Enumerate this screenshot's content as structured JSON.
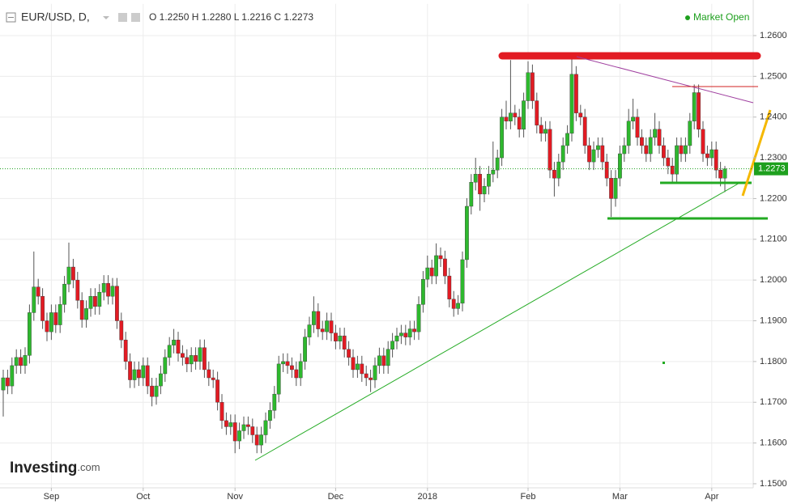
{
  "header": {
    "symbol": "EUR/USD, D,",
    "quote": "O 1.2250 H 1.2280 L 1.2216 C 1.2273",
    "status": "Market Open",
    "logo": "Investing",
    "logo_suffix": ".com"
  },
  "chart_data": {
    "type": "candlestick",
    "up_color": "#2eb82e",
    "down_color": "#e21b23",
    "last_color": "#1ea01e",
    "grid": true,
    "ylim": [
      1.149,
      1.2678
    ],
    "yticks": [
      {
        "value": 1.15,
        "label": "1.1500"
      },
      {
        "value": 1.16,
        "label": "1.1600"
      },
      {
        "value": 1.17,
        "label": "1.1700"
      },
      {
        "value": 1.18,
        "label": "1.1800"
      },
      {
        "value": 1.19,
        "label": "1.1900"
      },
      {
        "value": 1.2,
        "label": "1.2000"
      },
      {
        "value": 1.21,
        "label": "1.2100"
      },
      {
        "value": 1.22,
        "label": "1.2200"
      },
      {
        "value": 1.23,
        "label": "1.2300"
      },
      {
        "value": 1.24,
        "label": "1.2400"
      },
      {
        "value": 1.25,
        "label": "1.2500"
      },
      {
        "value": 1.26,
        "label": "1.2600"
      }
    ],
    "categories": [
      null,
      null,
      null,
      null,
      null,
      null,
      null,
      null,
      null,
      null,
      null,
      "Sep",
      null,
      null,
      null,
      null,
      null,
      null,
      null,
      null,
      null,
      null,
      null,
      null,
      null,
      null,
      null,
      null,
      null,
      null,
      null,
      null,
      "Oct",
      null,
      null,
      null,
      null,
      null,
      null,
      null,
      null,
      null,
      null,
      null,
      null,
      null,
      null,
      null,
      null,
      null,
      null,
      null,
      null,
      "Nov",
      null,
      null,
      null,
      null,
      null,
      null,
      null,
      null,
      null,
      null,
      null,
      null,
      null,
      null,
      null,
      null,
      null,
      null,
      null,
      null,
      null,
      null,
      "Dec",
      null,
      null,
      null,
      null,
      null,
      null,
      null,
      null,
      null,
      null,
      null,
      null,
      null,
      null,
      null,
      null,
      null,
      null,
      null,
      null,
      "2018",
      null,
      null,
      null,
      null,
      null,
      null,
      null,
      null,
      null,
      null,
      null,
      null,
      null,
      null,
      null,
      null,
      null,
      null,
      null,
      null,
      null,
      null,
      "Feb",
      null,
      null,
      null,
      null,
      null,
      null,
      null,
      null,
      null,
      null,
      null,
      null,
      null,
      null,
      null,
      null,
      null,
      null,
      null,
      null,
      "Mar",
      null,
      null,
      null,
      null,
      null,
      null,
      null,
      null,
      null,
      null,
      null,
      null,
      null,
      null,
      null,
      null,
      null,
      null,
      null,
      null,
      "Apr",
      null,
      null,
      null
    ],
    "open": [
      1.173,
      1.176,
      1.174,
      1.179,
      1.181,
      1.179,
      1.1815,
      1.192,
      1.1983,
      1.196,
      1.19,
      1.1873,
      1.192,
      1.189,
      1.194,
      1.199,
      1.2032,
      1.2,
      1.195,
      1.1903,
      1.193,
      1.196,
      1.1935,
      1.197,
      1.1992,
      1.196,
      1.1985,
      1.19,
      1.1853,
      1.18,
      1.1755,
      1.178,
      1.176,
      1.179,
      1.174,
      1.1714,
      1.174,
      1.177,
      1.181,
      1.184,
      1.1853,
      1.182,
      1.181,
      1.1794,
      1.1815,
      1.18,
      1.1834,
      1.178,
      1.176,
      1.1755,
      1.17,
      1.1655,
      1.164,
      1.165,
      1.1605,
      1.163,
      1.1645,
      1.164,
      1.162,
      1.1595,
      1.162,
      1.1655,
      1.168,
      1.172,
      1.1794,
      1.18,
      1.179,
      1.178,
      1.176,
      1.18,
      1.186,
      1.189,
      1.1923,
      1.188,
      1.1873,
      1.19,
      1.187,
      1.185,
      1.1863,
      1.183,
      1.181,
      1.178,
      1.1794,
      1.177,
      1.176,
      1.1755,
      1.179,
      1.1814,
      1.179,
      1.183,
      1.185,
      1.1863,
      1.187,
      1.186,
      1.188,
      1.1873,
      1.194,
      1.2002,
      1.203,
      1.201,
      1.206,
      1.2052,
      1.201,
      1.1953,
      1.193,
      1.1943,
      1.205,
      1.2181,
      1.224,
      1.226,
      1.2211,
      1.223,
      1.226,
      1.227,
      1.23,
      1.24,
      1.239,
      1.241,
      1.24,
      1.237,
      1.244,
      1.2509,
      1.244,
      1.238,
      1.236,
      1.237,
      1.227,
      1.225,
      1.229,
      1.233,
      1.236,
      1.2505,
      1.241,
      1.24,
      1.233,
      1.229,
      1.232,
      1.233,
      1.229,
      1.225,
      1.22,
      1.225,
      1.231,
      1.233,
      1.239,
      1.24,
      1.235,
      1.233,
      1.231,
      1.235,
      1.237,
      1.233,
      1.23,
      1.228,
      1.226,
      1.233,
      1.231,
      1.233,
      1.239,
      1.246,
      1.237,
      1.231,
      1.23,
      1.232,
      1.227,
      1.225
    ],
    "high": [
      1.178,
      1.178,
      1.181,
      1.183,
      1.183,
      1.1835,
      1.194,
      1.207,
      1.2003,
      1.198,
      1.192,
      1.194,
      1.194,
      1.196,
      1.201,
      1.2092,
      1.2052,
      1.202,
      1.197,
      1.195,
      1.198,
      1.198,
      1.199,
      1.2012,
      1.2012,
      1.2005,
      1.2005,
      1.192,
      1.1873,
      1.182,
      1.18,
      1.18,
      1.181,
      1.181,
      1.176,
      1.176,
      1.179,
      1.183,
      1.186,
      1.188,
      1.1873,
      1.184,
      1.183,
      1.1835,
      1.1835,
      1.1854,
      1.1854,
      1.18,
      1.178,
      1.1775,
      1.172,
      1.1675,
      1.167,
      1.167,
      1.165,
      1.1665,
      1.1665,
      1.166,
      1.164,
      1.164,
      1.1675,
      1.17,
      1.174,
      1.1814,
      1.182,
      1.182,
      1.181,
      1.18,
      1.182,
      1.188,
      1.191,
      1.196,
      1.1943,
      1.19,
      1.192,
      1.192,
      1.189,
      1.1883,
      1.1883,
      1.185,
      1.183,
      1.1814,
      1.1814,
      1.179,
      1.178,
      1.181,
      1.1834,
      1.1834,
      1.185,
      1.187,
      1.1883,
      1.189,
      1.189,
      1.19,
      1.19,
      1.196,
      1.2022,
      1.206,
      1.205,
      1.209,
      1.208,
      1.2072,
      1.203,
      1.1973,
      1.1963,
      1.207,
      1.2201,
      1.226,
      1.23,
      1.228,
      1.225,
      1.228,
      1.234,
      1.232,
      1.242,
      1.244,
      1.254,
      1.243,
      1.242,
      1.246,
      1.2537,
      1.2529,
      1.246,
      1.24,
      1.239,
      1.239,
      1.229,
      1.231,
      1.235,
      1.238,
      1.2555,
      1.2525,
      1.243,
      1.242,
      1.235,
      1.234,
      1.235,
      1.235,
      1.231,
      1.227,
      1.227,
      1.233,
      1.235,
      1.242,
      1.2445,
      1.242,
      1.237,
      1.235,
      1.237,
      1.241,
      1.239,
      1.235,
      1.232,
      1.23,
      1.235,
      1.235,
      1.235,
      1.241,
      1.248,
      1.248,
      1.239,
      1.233,
      1.234,
      1.234,
      1.229,
      1.228
    ],
    "low": [
      1.1665,
      1.172,
      1.172,
      1.177,
      1.177,
      1.177,
      1.1795,
      1.19,
      1.194,
      1.188,
      1.185,
      1.1853,
      1.187,
      1.187,
      1.192,
      1.197,
      1.198,
      1.193,
      1.1883,
      1.1883,
      1.191,
      1.1915,
      1.1915,
      1.195,
      1.194,
      1.194,
      1.188,
      1.1833,
      1.178,
      1.1735,
      1.1735,
      1.174,
      1.174,
      1.172,
      1.169,
      1.1694,
      1.172,
      1.175,
      1.179,
      1.182,
      1.18,
      1.179,
      1.1774,
      1.1774,
      1.178,
      1.178,
      1.176,
      1.174,
      1.1735,
      1.168,
      1.1635,
      1.162,
      1.162,
      1.1575,
      1.1585,
      1.161,
      1.162,
      1.16,
      1.1575,
      1.1575,
      1.16,
      1.1635,
      1.166,
      1.17,
      1.1774,
      1.177,
      1.176,
      1.174,
      1.174,
      1.178,
      1.184,
      1.187,
      1.186,
      1.1853,
      1.1853,
      1.185,
      1.183,
      1.183,
      1.181,
      1.179,
      1.176,
      1.176,
      1.175,
      1.174,
      1.1725,
      1.1735,
      1.177,
      1.177,
      1.177,
      1.181,
      1.183,
      1.1843,
      1.184,
      1.184,
      1.1853,
      1.1853,
      1.192,
      1.1982,
      1.199,
      1.199,
      1.2032,
      1.199,
      1.1933,
      1.191,
      1.1915,
      1.1923,
      1.203,
      1.2161,
      1.222,
      1.217,
      1.2191,
      1.221,
      1.224,
      1.225,
      1.228,
      1.237,
      1.237,
      1.238,
      1.235,
      1.235,
      1.242,
      1.242,
      1.236,
      1.234,
      1.234,
      1.225,
      1.2205,
      1.223,
      1.227,
      1.231,
      1.234,
      1.239,
      1.238,
      1.231,
      1.227,
      1.227,
      1.23,
      1.227,
      1.223,
      1.2155,
      1.218,
      1.223,
      1.229,
      1.231,
      1.237,
      1.233,
      1.231,
      1.229,
      1.229,
      1.233,
      1.231,
      1.228,
      1.226,
      1.224,
      1.224,
      1.229,
      1.229,
      1.231,
      1.237,
      1.235,
      1.229,
      1.228,
      1.228,
      1.225,
      1.223,
      1.2216
    ],
    "close": [
      1.176,
      1.174,
      1.179,
      1.181,
      1.179,
      1.1815,
      1.192,
      1.1983,
      1.196,
      1.19,
      1.1873,
      1.192,
      1.189,
      1.194,
      1.199,
      1.2032,
      1.2,
      1.195,
      1.1903,
      1.193,
      1.196,
      1.1935,
      1.197,
      1.1992,
      1.196,
      1.1985,
      1.19,
      1.1853,
      1.18,
      1.1755,
      1.178,
      1.176,
      1.179,
      1.174,
      1.1714,
      1.174,
      1.177,
      1.181,
      1.184,
      1.1853,
      1.182,
      1.181,
      1.1794,
      1.1815,
      1.18,
      1.1834,
      1.178,
      1.176,
      1.1755,
      1.17,
      1.1655,
      1.164,
      1.165,
      1.1605,
      1.163,
      1.1645,
      1.164,
      1.162,
      1.1595,
      1.162,
      1.1655,
      1.168,
      1.172,
      1.1794,
      1.18,
      1.179,
      1.178,
      1.176,
      1.18,
      1.186,
      1.189,
      1.1923,
      1.188,
      1.1873,
      1.19,
      1.187,
      1.185,
      1.1863,
      1.183,
      1.181,
      1.178,
      1.1794,
      1.177,
      1.176,
      1.1755,
      1.179,
      1.1814,
      1.179,
      1.183,
      1.185,
      1.1863,
      1.187,
      1.186,
      1.188,
      1.1873,
      1.194,
      1.2002,
      1.203,
      1.201,
      1.206,
      1.2052,
      1.201,
      1.1953,
      1.193,
      1.1943,
      1.205,
      1.2181,
      1.224,
      1.226,
      1.2211,
      1.223,
      1.226,
      1.227,
      1.23,
      1.24,
      1.239,
      1.241,
      1.24,
      1.237,
      1.244,
      1.2509,
      1.244,
      1.238,
      1.236,
      1.237,
      1.227,
      1.225,
      1.229,
      1.233,
      1.236,
      1.2505,
      1.241,
      1.24,
      1.233,
      1.229,
      1.232,
      1.233,
      1.229,
      1.225,
      1.22,
      1.225,
      1.231,
      1.233,
      1.239,
      1.24,
      1.235,
      1.233,
      1.231,
      1.235,
      1.237,
      1.233,
      1.23,
      1.228,
      1.226,
      1.233,
      1.231,
      1.233,
      1.239,
      1.246,
      1.237,
      1.231,
      1.23,
      1.232,
      1.227,
      1.225,
      1.2273
    ]
  }
}
